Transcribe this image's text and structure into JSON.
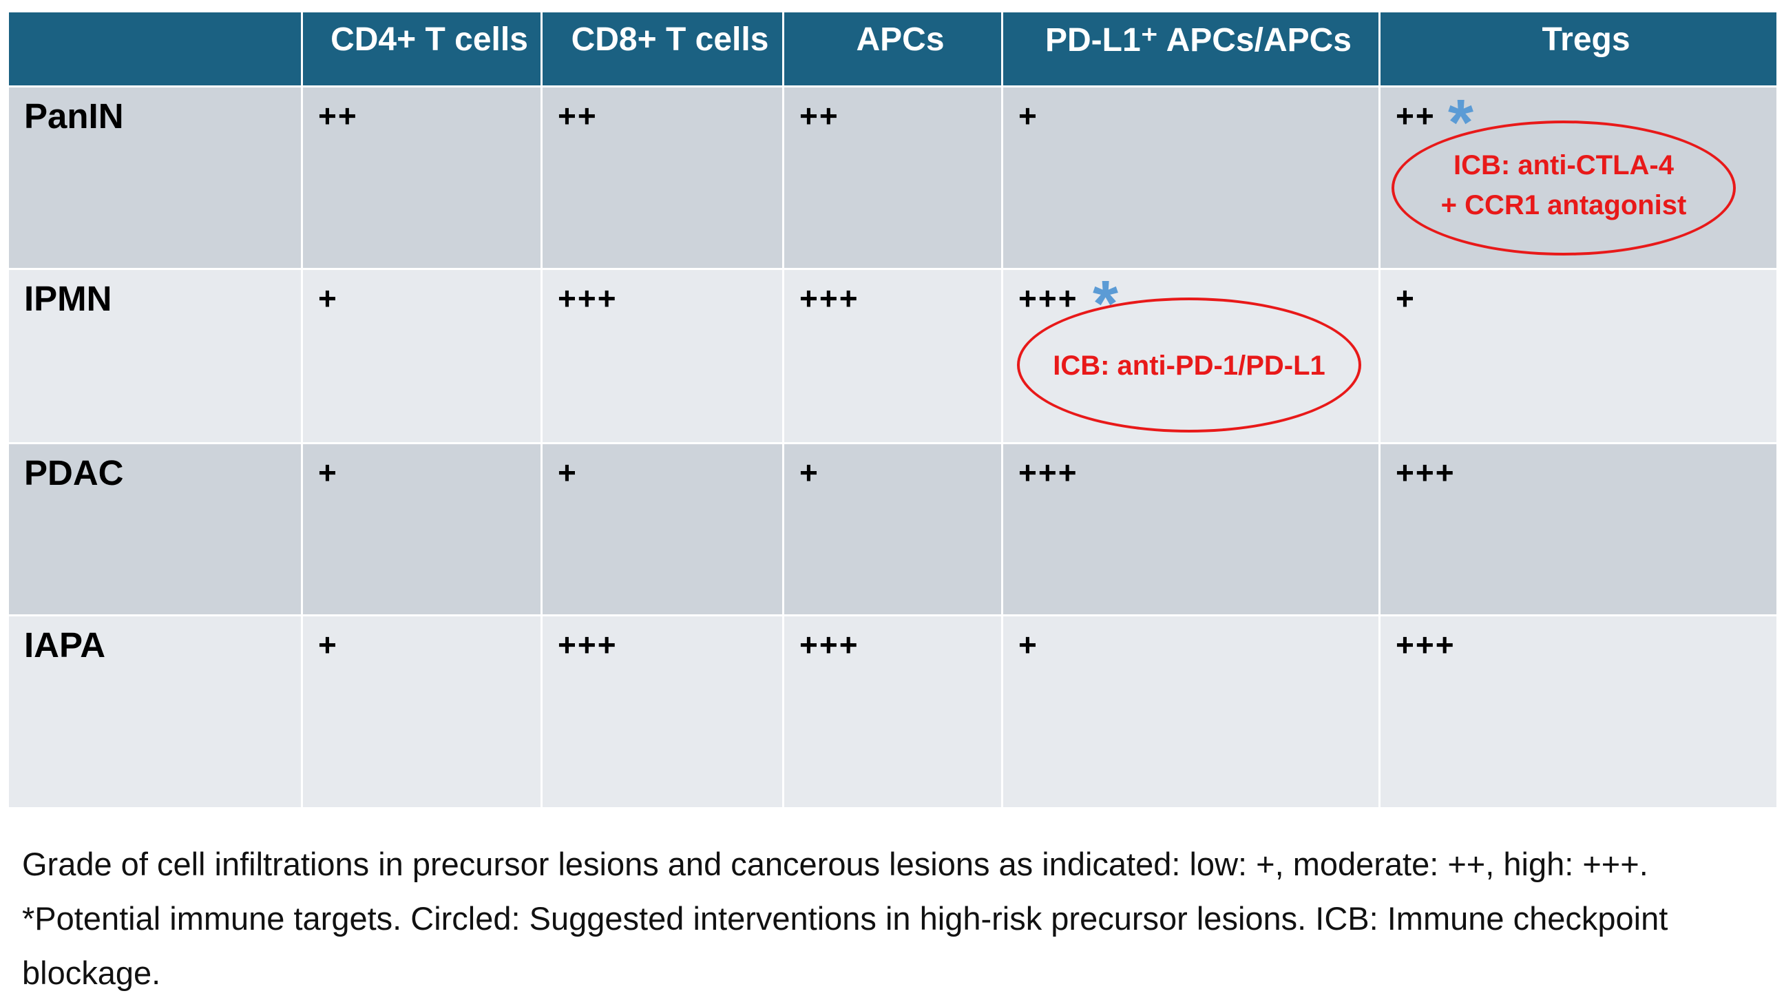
{
  "chart_data": {
    "type": "table",
    "columns": [
      "",
      "CD4+ T cells",
      "CD8+ T cells",
      "APCs",
      "PD-L1⁺ APCs/APCs",
      "Tregs"
    ],
    "rows": [
      {
        "label": "PanIN",
        "values": [
          "++",
          "++",
          "++",
          "+",
          "++"
        ]
      },
      {
        "label": "IPMN",
        "values": [
          "+",
          "+++",
          "+++",
          "+++",
          "+"
        ]
      },
      {
        "label": "PDAC",
        "values": [
          "+",
          "+",
          "+",
          "+++",
          "+++"
        ]
      },
      {
        "label": "IAPA",
        "values": [
          "+",
          "+++",
          "+++",
          "+",
          "+++"
        ]
      }
    ],
    "annotations": {
      "star_symbol": "*",
      "panin_tregs": {
        "line1": "ICB: anti-CTLA-4",
        "line2": "+ CCR1 antagonist"
      },
      "ipmn_pdl1": {
        "line1": "ICB: anti-PD-1/PD-L1"
      }
    },
    "colors": {
      "header": "#1b6182",
      "row_dark": "#cdd3da",
      "row_light": "#e7eaee",
      "star": "#5b9bd5",
      "circle": "#e81919"
    },
    "caption": "Grade of cell infiltrations in precursor lesions and cancerous lesions as indicated: low: +, moderate: ++, high: +++. *Potential immune targets. Circled: Suggested interventions in high-risk precursor lesions. ICB: Immune checkpoint blockage."
  }
}
